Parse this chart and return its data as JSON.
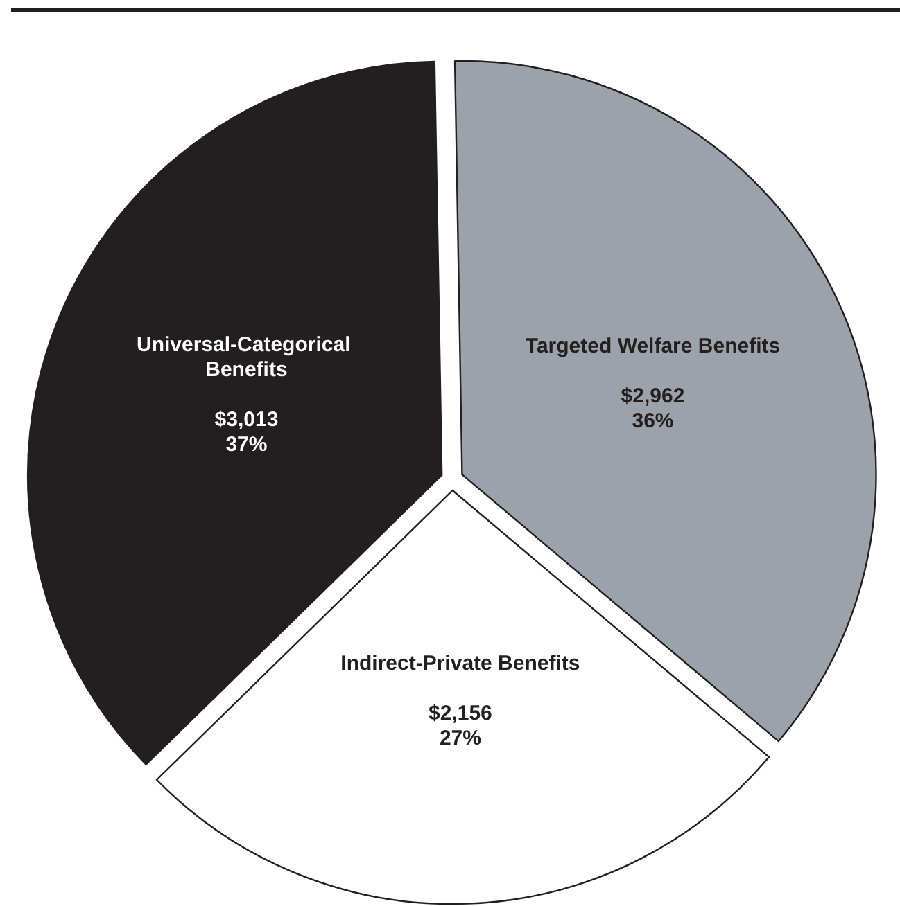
{
  "chart_data": {
    "type": "pie",
    "categories": [
      "Targeted Welfare Benefits",
      "Indirect-Private Benefits",
      "Universal-Categorical Benefits"
    ],
    "values": [
      2962,
      2156,
      3013
    ],
    "colors": [
      "#9ba2aa",
      "#ffffff",
      "#231f20"
    ],
    "value_labels": [
      "$2,962\n36%",
      "$2,156\n27%",
      "$3,013\n37%"
    ],
    "legend": false
  }
}
